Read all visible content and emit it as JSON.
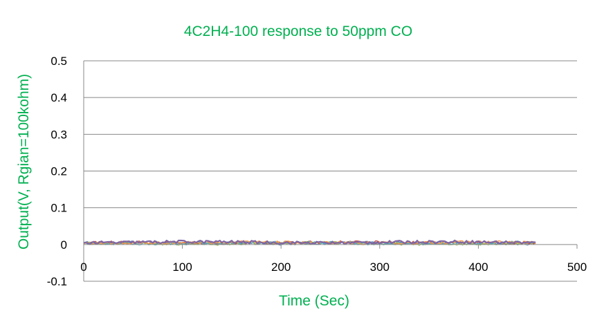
{
  "chart_data": {
    "type": "line",
    "title": "4C2H4-100 response to 50ppm CO",
    "xlabel": "Time (Sec)",
    "ylabel": "Output(V, Rgian=100kohm)",
    "xlim": [
      0,
      500
    ],
    "ylim": [
      -0.1,
      0.5
    ],
    "x_ticks": [
      "0",
      "100",
      "200",
      "300",
      "400",
      "500"
    ],
    "y_ticks": [
      "-0.1",
      "0",
      "0.1",
      "0.2",
      "0.3",
      "0.4",
      "0.5"
    ],
    "x_tick_values": [
      0,
      100,
      200,
      300,
      400,
      500
    ],
    "y_tick_values": [
      -0.1,
      0,
      0.1,
      0.2,
      0.3,
      0.4,
      0.5
    ],
    "grid": "horizontal",
    "legend": "none",
    "x_start": 0,
    "x_end": 458,
    "x_step": 2,
    "series": [
      {
        "color": "#4f81bd",
        "level": 0.004
      },
      {
        "color": "#c0504d",
        "level": 0.005
      },
      {
        "color": "#9bbb59",
        "level": 0.003
      },
      {
        "color": "#4bacc6",
        "level": 0.004
      },
      {
        "color": "#f79646",
        "level": 0.005
      },
      {
        "color": "#8064a2",
        "level": 0.006
      }
    ],
    "colors": {
      "title": "#00b050",
      "axis_title": "#00b050",
      "grid": "#888888",
      "axis": "#888888"
    }
  }
}
